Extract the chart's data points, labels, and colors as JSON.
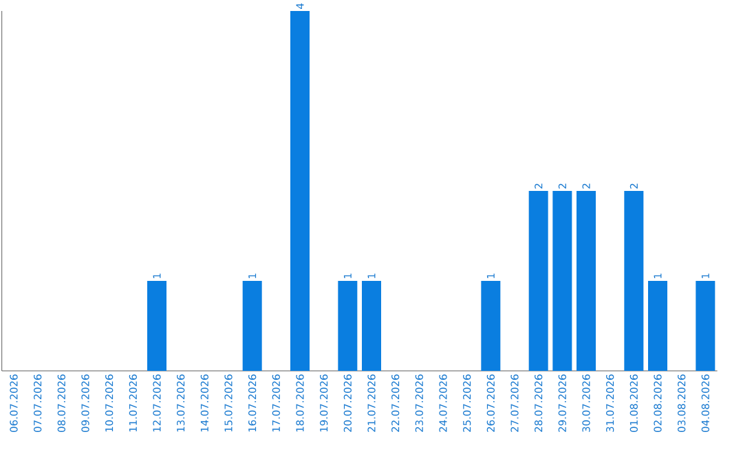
{
  "chart_data": {
    "type": "bar",
    "categories": [
      "06.07.2026",
      "07.07.2026",
      "08.07.2026",
      "09.07.2026",
      "10.07.2026",
      "11.07.2026",
      "12.07.2026",
      "13.07.2026",
      "14.07.2026",
      "15.07.2026",
      "16.07.2026",
      "17.07.2026",
      "18.07.2026",
      "19.07.2026",
      "20.07.2026",
      "21.07.2026",
      "22.07.2026",
      "23.07.2026",
      "24.07.2026",
      "25.07.2026",
      "26.07.2026",
      "27.07.2026",
      "28.07.2026",
      "29.07.2026",
      "30.07.2026",
      "31.07.2026",
      "01.08.2026",
      "02.08.2026",
      "03.08.2026",
      "04.08.2026"
    ],
    "values": [
      0,
      0,
      0,
      0,
      0,
      0,
      1,
      0,
      0,
      0,
      1,
      0,
      4,
      0,
      1,
      1,
      0,
      0,
      0,
      0,
      1,
      0,
      2,
      2,
      2,
      0,
      2,
      1,
      0,
      1
    ],
    "value_labels": [
      null,
      null,
      null,
      null,
      null,
      null,
      "1",
      null,
      null,
      null,
      "1",
      null,
      "4",
      null,
      "1",
      "1",
      null,
      null,
      null,
      null,
      "1",
      null,
      "2",
      "2",
      "2",
      null,
      "2",
      "1",
      null,
      "1"
    ],
    "color": "#0a7ee0",
    "tick_labels": "x"
  }
}
